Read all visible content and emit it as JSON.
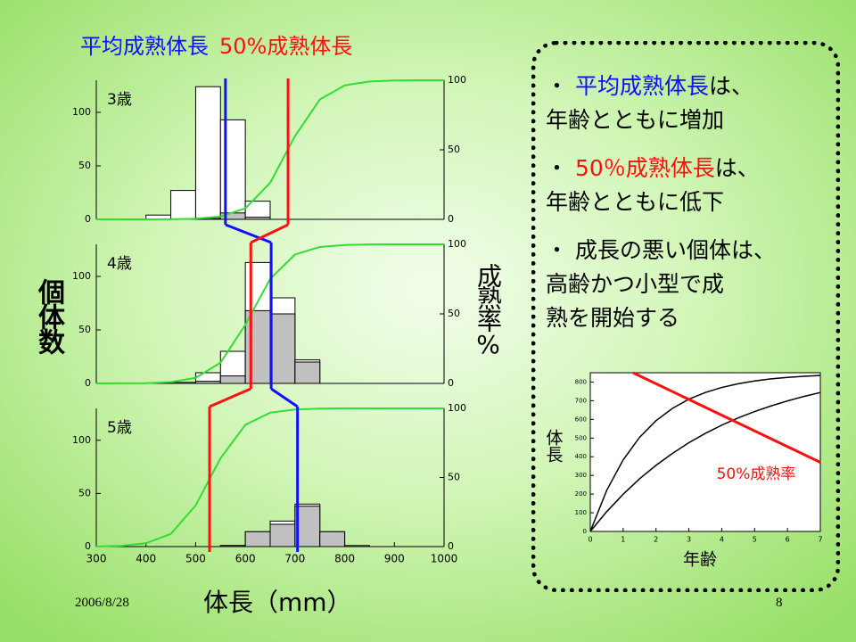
{
  "legend": [
    {
      "text": "平均成熟体長",
      "color": "#1010ff"
    },
    {
      "text": "50%成熟体長",
      "color": "#ff1010"
    }
  ],
  "y_label": "個体数",
  "y2_label": "成熟率%",
  "x_label": "体長（mm）",
  "bullets": [
    {
      "lines": [
        [
          {
            "text": "・ "
          },
          {
            "text": "平均成熟体長",
            "color": "#1010ff"
          },
          {
            "text": "は、"
          }
        ],
        [
          {
            "text": "年齢とともに増加"
          }
        ]
      ]
    },
    {
      "lines": [
        [
          {
            "text": "・ "
          },
          {
            "text": "50％成熟体長",
            "color": "#ff1010"
          },
          {
            "text": "は、"
          }
        ],
        [
          {
            "text": "年齢とともに低下"
          }
        ]
      ]
    },
    {
      "lines": [
        [
          {
            "text": "・ 成長の悪い個体は、"
          }
        ],
        [
          {
            "text": "高齢かつ小型で成"
          }
        ],
        [
          {
            "text": "熟を開始する"
          }
        ]
      ]
    }
  ],
  "footer": {
    "date": "2006/8/28",
    "page": "8"
  },
  "chart_data": [
    {
      "type": "histogram",
      "label": "3歳",
      "bins": [
        400,
        450,
        500,
        550,
        600,
        650
      ],
      "values": [
        4,
        27,
        124,
        93,
        17
      ],
      "mature_values": [
        0,
        0,
        1,
        6,
        2
      ],
      "maturity": {
        "x": [
          300,
          350,
          400,
          450,
          500,
          550,
          600,
          650,
          700,
          750,
          800,
          850,
          900,
          950,
          1000
        ],
        "values": [
          0,
          0,
          0,
          0.1,
          0.5,
          2.0,
          7.9,
          26.3,
          59.9,
          86.2,
          96.3,
          99.1,
          99.8,
          100,
          100
        ],
        "color": "#33dd33"
      },
      "mean_length": 560,
      "length_50": 686,
      "xlim": [
        300,
        1000
      ],
      "ylim": [
        0,
        130
      ],
      "yticks": [
        0,
        50,
        100
      ],
      "y2lim": [
        0,
        100
      ],
      "y2ticks": [
        0,
        50,
        100
      ],
      "bar_color": "#ffffff",
      "mature_color": "#c0c0c0"
    },
    {
      "type": "histogram",
      "label": "4歳",
      "bins": [
        450,
        500,
        550,
        600,
        650,
        700,
        750
      ],
      "values": [
        1,
        10,
        30,
        113,
        80,
        22
      ],
      "mature_values": [
        0,
        2,
        7,
        68,
        65,
        20
      ],
      "maturity": {
        "x": [
          300,
          350,
          400,
          450,
          500,
          550,
          600,
          650,
          700,
          750,
          800,
          850,
          900,
          950,
          1000
        ],
        "values": [
          0,
          0.1,
          0.2,
          1.0,
          4.0,
          14.9,
          42.2,
          75.2,
          92.7,
          98.1,
          99.5,
          99.9,
          100,
          100,
          100
        ],
        "color": "#33dd33"
      },
      "mean_length": 652,
      "length_50": 611,
      "xlim": [
        300,
        1000
      ],
      "ylim": [
        0,
        130
      ],
      "yticks": [
        0,
        50,
        100
      ],
      "y2lim": [
        0,
        100
      ],
      "y2ticks": [
        0,
        50,
        100
      ],
      "bar_color": "#ffffff",
      "mature_color": "#c0c0c0"
    },
    {
      "type": "histogram",
      "label": "5歳",
      "bins": [
        550,
        600,
        650,
        700,
        750,
        800,
        850
      ],
      "values": [
        1,
        14,
        24,
        40,
        14,
        1
      ],
      "mature_values": [
        1,
        14,
        21,
        38,
        14,
        0
      ],
      "maturity": {
        "x": [
          300,
          350,
          400,
          450,
          500,
          550,
          600,
          650,
          700,
          750,
          800,
          850,
          900,
          950,
          1000
        ],
        "values": [
          0.1,
          0.6,
          2.4,
          9.2,
          29.8,
          63.9,
          88.1,
          96.9,
          99.2,
          99.8,
          100,
          100,
          100,
          100,
          100
        ],
        "color": "#33dd33"
      },
      "mean_length": 705,
      "length_50": 528,
      "xlim": [
        300,
        1000
      ],
      "xticks": [
        300,
        400,
        500,
        600,
        700,
        800,
        900,
        1000
      ],
      "ylim": [
        0,
        130
      ],
      "yticks": [
        0,
        50,
        100
      ],
      "y2lim": [
        0,
        100
      ],
      "y2ticks": [
        0,
        50,
        100
      ],
      "bar_color": "#ffffff",
      "mature_color": "#c0c0c0"
    },
    {
      "type": "line",
      "x_label": "年齢",
      "y_label": "体長",
      "xlim": [
        0,
        7
      ],
      "xticks": [
        0,
        1,
        2,
        3,
        4,
        5,
        6,
        7
      ],
      "ylim": [
        0,
        850
      ],
      "yticks": [
        0,
        100,
        200,
        300,
        400,
        500,
        600,
        700,
        800
      ],
      "series": [
        {
          "x": [
            0,
            0.5,
            1,
            1.5,
            2,
            2.5,
            3,
            3.5,
            4,
            4.5,
            5,
            5.5,
            6,
            6.5,
            7
          ],
          "values": [
            0,
            220,
            383,
            504,
            593,
            659,
            708,
            744,
            771,
            791,
            806,
            817,
            825,
            831,
            835
          ],
          "color": "#000000"
        },
        {
          "x": [
            0,
            0.5,
            1,
            1.5,
            2,
            2.5,
            3,
            3.5,
            4,
            4.5,
            5,
            5.5,
            6,
            6.5,
            7
          ],
          "values": [
            0,
            106,
            199,
            282,
            354,
            418,
            475,
            525,
            569,
            608,
            642,
            672,
            699,
            723,
            744
          ],
          "color": "#000000"
        },
        {
          "name": "50%成熟率",
          "x": [
            1.3,
            7
          ],
          "values": [
            850,
            370
          ],
          "color": "#ff1010"
        }
      ]
    }
  ]
}
